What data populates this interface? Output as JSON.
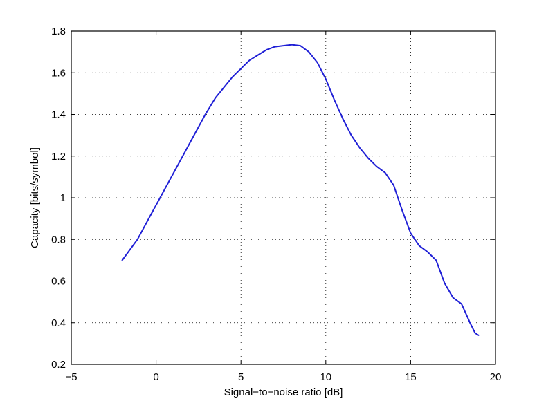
{
  "chart_data": {
    "type": "line",
    "title": "",
    "xlabel": "Signal−to−noise ratio [dB]",
    "ylabel": "Capacity [bits/symbol]",
    "xlim": [
      -5,
      20
    ],
    "ylim": [
      0.2,
      1.8
    ],
    "xticks": [
      -5,
      0,
      5,
      10,
      15,
      20
    ],
    "xtick_labels": [
      "−5",
      "0",
      "5",
      "10",
      "15",
      "20"
    ],
    "yticks": [
      0.2,
      0.4,
      0.6,
      0.8,
      1.0,
      1.2,
      1.4,
      1.6,
      1.8
    ],
    "ytick_labels": [
      "0.2",
      "0.4",
      "0.6",
      "0.8",
      "1",
      "1.2",
      "1.4",
      "1.6",
      "1.8"
    ],
    "grid": true,
    "series": [
      {
        "color": "#1f1fd6",
        "x": [
          -2.0,
          -1.1,
          -0.3,
          0.5,
          1.3,
          2.1,
          2.9,
          3.5,
          4.0,
          4.5,
          5.0,
          5.5,
          6.0,
          6.5,
          7.0,
          7.5,
          8.0,
          8.5,
          9.0,
          9.5,
          10.0,
          10.5,
          11.0,
          11.5,
          12.0,
          12.5,
          13.0,
          13.5,
          14.0,
          14.5,
          15.0,
          15.5,
          16.0,
          16.5,
          17.0,
          17.5,
          18.0,
          18.5,
          18.8,
          19.0
        ],
        "y": [
          0.7,
          0.8,
          0.92,
          1.04,
          1.16,
          1.28,
          1.4,
          1.48,
          1.53,
          1.58,
          1.62,
          1.66,
          1.685,
          1.71,
          1.725,
          1.73,
          1.735,
          1.73,
          1.7,
          1.65,
          1.57,
          1.47,
          1.38,
          1.3,
          1.24,
          1.19,
          1.15,
          1.12,
          1.06,
          0.94,
          0.83,
          0.77,
          0.74,
          0.7,
          0.59,
          0.52,
          0.49,
          0.4,
          0.35,
          0.34
        ]
      }
    ]
  }
}
